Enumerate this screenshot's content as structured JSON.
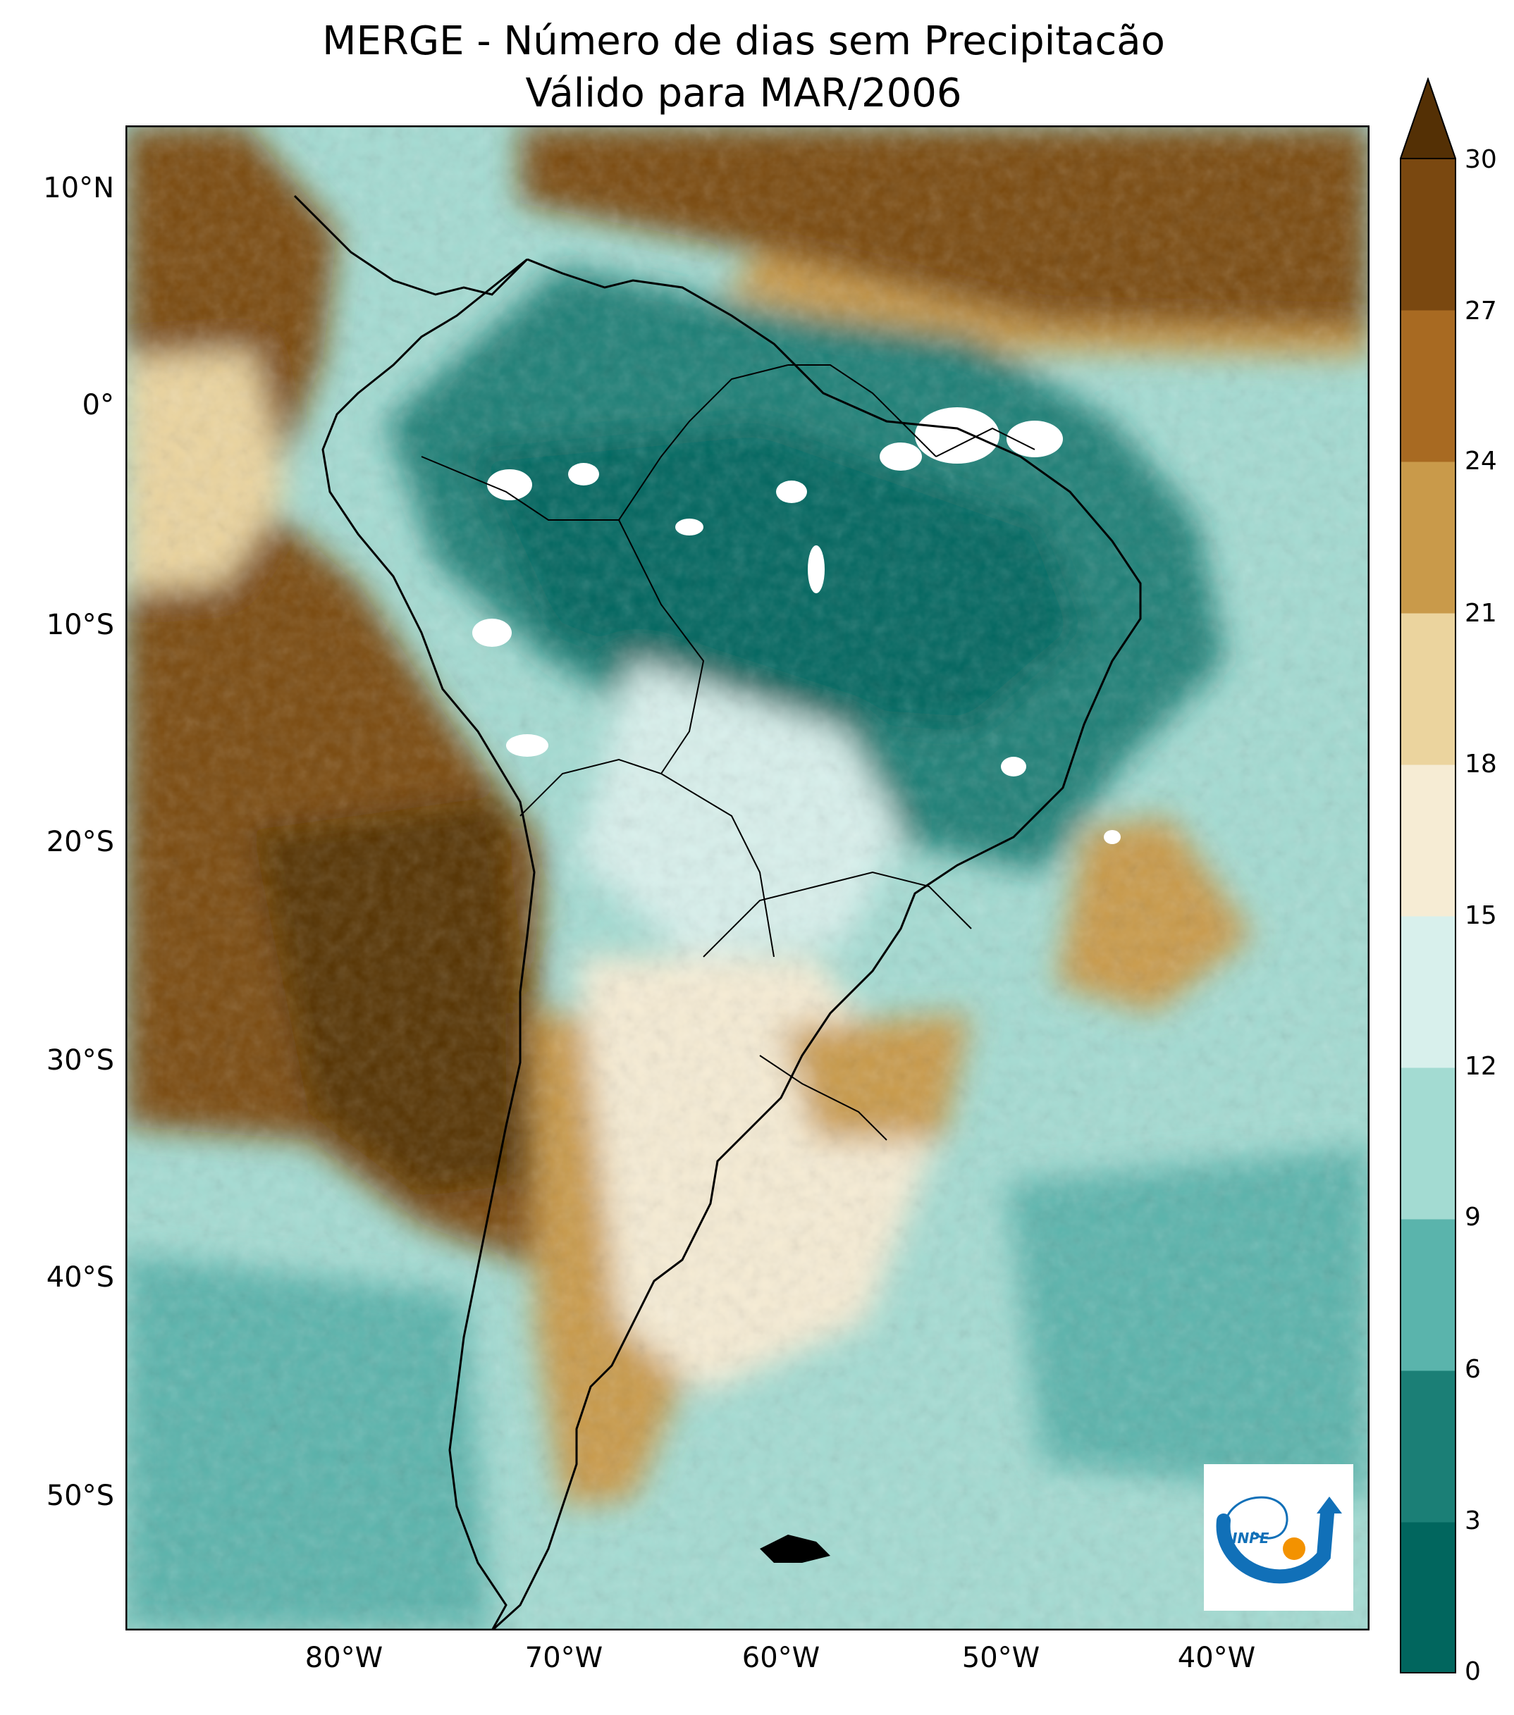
{
  "title": {
    "line1": "MERGE - Número de dias sem Precipitacão",
    "line2": "Válido para MAR/2006"
  },
  "axes": {
    "lat_ticks": [
      "10°N",
      "0°",
      "10°S",
      "20°S",
      "30°S",
      "40°S",
      "50°S"
    ],
    "lon_ticks": [
      "80°W",
      "70°W",
      "60°W",
      "50°W",
      "40°W"
    ]
  },
  "colorbar": {
    "ticks": [
      "0",
      "3",
      "6",
      "9",
      "12",
      "15",
      "18",
      "21",
      "24",
      "27",
      "30"
    ],
    "colors": [
      "#01665e",
      "#1b7f76",
      "#5ab4ac",
      "#a3dbd2",
      "#d8f0ec",
      "#f6ecd4",
      "#ebd49e",
      "#c99a4a",
      "#a86a22",
      "#7a4810",
      "#543005"
    ]
  },
  "logo": {
    "text": "INPE",
    "blue": "#1170b8",
    "orange": "#f39200"
  }
}
